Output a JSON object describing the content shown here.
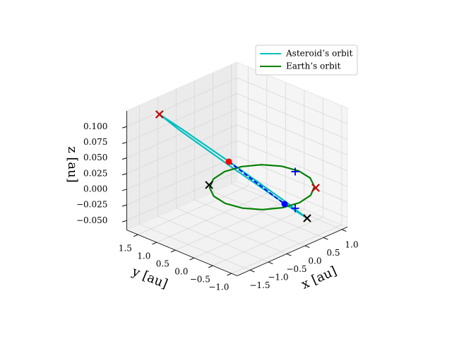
{
  "chart_data": {
    "type": "line3d",
    "xlabel": "x [au]",
    "ylabel": "y [au]",
    "zlabel": "z [au]",
    "xlim": [
      -1.85,
      1.15
    ],
    "ylim": [
      -1.15,
      1.8
    ],
    "zlim": [
      -0.065,
      0.125
    ],
    "xticks": [
      {
        "value": -1.5,
        "label": "−1.5"
      },
      {
        "value": -1.0,
        "label": "−1.0"
      },
      {
        "value": -0.5,
        "label": "−0.5"
      },
      {
        "value": 0.0,
        "label": "0.0"
      },
      0.5,
      {
        "value": 1.0,
        "label": "1.0"
      }
    ],
    "yticks": [
      {
        "value": -1.0,
        "label": "−1.0"
      },
      {
        "value": -0.5,
        "label": "−0.5"
      },
      {
        "value": 0.0,
        "label": "0.0"
      },
      0.5,
      {
        "value": 1.0,
        "label": "1.0"
      },
      1.5
    ],
    "zticks": [
      {
        "value": -0.05,
        "label": "−0.050"
      },
      {
        "value": -0.025,
        "label": "−0.025"
      },
      {
        "value": 0.0,
        "label": "0.000"
      },
      0.025,
      {
        "value": 0.05,
        "label": "0.050"
      },
      0.075,
      {
        "value": 0.1,
        "label": "0.100"
      }
    ],
    "grid": true,
    "legend": "upper right",
    "series": [
      {
        "name": "Asteroid’s orbit",
        "color": "#00bfbf",
        "x": [
          0.0,
          -0.116,
          -0.465,
          -0.844,
          -1.03,
          -0.914,
          -0.565,
          -0.186
        ],
        "y": [
          -1.2,
          -0.757,
          0.285,
          1.315,
          1.73,
          1.287,
          0.245,
          -0.785
        ],
        "z": [
          -0.02,
          -0.002,
          0.04,
          0.082,
          0.1,
          0.082,
          0.04,
          -0.002
        ],
        "closed": true
      },
      {
        "name": "Earth’s orbit",
        "color": "#008000",
        "x": [
          1,
          0.924,
          0.707,
          0.383,
          0,
          -0.383,
          -0.707,
          -0.924,
          -1,
          -0.924,
          -0.707,
          -0.383,
          0,
          0.383,
          0.707,
          0.924
        ],
        "y": [
          0,
          0.383,
          0.707,
          0.924,
          1,
          0.924,
          0.707,
          0.383,
          0,
          -0.383,
          -0.707,
          -0.924,
          -1,
          -0.924,
          -0.707,
          -0.383
        ],
        "z": [
          0,
          0,
          0,
          0,
          0,
          0,
          0,
          0,
          0,
          0,
          0,
          0,
          0,
          0,
          0,
          0
        ],
        "closed": true
      },
      {
        "color": "#0000ff",
        "x": [
          -0.425,
          -0.24
        ],
        "y": [
          0.469,
          -0.84
        ],
        "z": [
          0.04,
          0
        ],
        "dashed": true
      }
    ],
    "markers": [
      {
        "marker": "x",
        "color": "#000000",
        "x": [
          -1.03,
          -0.63,
          0.687,
          0.006
        ],
        "y": [
          1.73,
          0.797,
          -0.76,
          -1.2
        ],
        "z": [
          0.1,
          0,
          0,
          -0.02
        ]
      },
      {
        "marker": "x",
        "color": "#cc0000",
        "x": [
          -1.03,
          0.687
        ],
        "y": [
          1.73,
          -0.76
        ],
        "z": [
          0.1,
          0
        ]
      },
      {
        "marker": "+",
        "color": "#0000ff",
        "x": [
          0.93,
          -0.236
        ],
        "y": [
          0.026,
          -1.118
        ],
        "z": [
          0,
          0
        ]
      },
      {
        "marker": "o",
        "color": "#ff0000",
        "x": [
          -0.425
        ],
        "y": [
          0.469
        ],
        "z": [
          0.04
        ]
      },
      {
        "marker": "o",
        "color": "#0000ff",
        "x": [
          -0.24
        ],
        "y": [
          -0.84
        ],
        "z": [
          0
        ]
      }
    ]
  }
}
